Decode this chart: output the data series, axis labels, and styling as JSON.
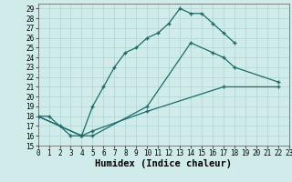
{
  "xlabel": "Humidex (Indice chaleur)",
  "xlim": [
    0,
    23
  ],
  "ylim": [
    15,
    29.5
  ],
  "xticks": [
    0,
    1,
    2,
    3,
    4,
    5,
    6,
    7,
    8,
    9,
    10,
    11,
    12,
    13,
    14,
    15,
    16,
    17,
    18,
    19,
    20,
    21,
    22,
    23
  ],
  "yticks": [
    15,
    16,
    17,
    18,
    19,
    20,
    21,
    22,
    23,
    24,
    25,
    26,
    27,
    28,
    29
  ],
  "bg_color": "#d0ecea",
  "grid_color": "#b0d4d0",
  "line_color": "#1a6b6b",
  "line1_x": [
    0,
    1,
    2,
    3,
    4,
    5,
    6,
    7,
    8,
    9,
    10,
    11,
    12,
    13,
    14,
    15,
    16,
    17,
    18
  ],
  "line1_y": [
    18,
    18,
    17,
    16,
    16,
    19,
    21,
    23,
    24.5,
    25,
    26,
    26.5,
    27.5,
    29,
    28.5,
    28.5,
    27.5,
    26.5,
    25.5
  ],
  "line2_x": [
    0,
    4,
    5,
    10,
    14,
    16,
    17,
    18,
    22
  ],
  "line2_y": [
    18,
    16,
    16,
    19,
    25.5,
    24.5,
    24,
    23,
    21.5
  ],
  "line3_x": [
    0,
    4,
    5,
    10,
    17,
    22
  ],
  "line3_y": [
    18,
    16,
    16.5,
    18.5,
    21,
    21
  ],
  "tick_fontsize": 5.5,
  "label_fontsize": 7.5,
  "title_fontsize": 6.5
}
